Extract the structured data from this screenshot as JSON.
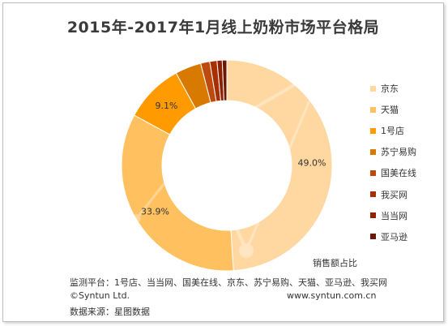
{
  "chart_data": {
    "type": "pie",
    "variant": "donut",
    "title": "2015年-2017年1月线上奶粉市场平台格局",
    "series_name": "销售额占比",
    "categories": [
      "京东",
      "天猫",
      "1号店",
      "苏宁易购",
      "国美在线",
      "我买网",
      "当当网",
      "亚马逊"
    ],
    "values": [
      49.0,
      33.9,
      9.1,
      4.0,
      1.4,
      1.1,
      0.8,
      0.7
    ],
    "data_labels": [
      "49.0%",
      "33.9%",
      "9.1%",
      "",
      "",
      "",
      "",
      ""
    ],
    "colors": [
      "#FFD7A0",
      "#FFC060",
      "#FF9A00",
      "#D97A00",
      "#BF4A10",
      "#A83000",
      "#902000",
      "#6A1800"
    ],
    "legend_position": "right"
  },
  "footer": {
    "platforms": "监测平台：1号店、当当网、国美在线、京东、苏宁易购、天猫、亚马逊、我买网",
    "copyright": "©Syntun Ltd.",
    "website": "www.syntun.com.cn",
    "source": "数据来源：星图数据"
  }
}
